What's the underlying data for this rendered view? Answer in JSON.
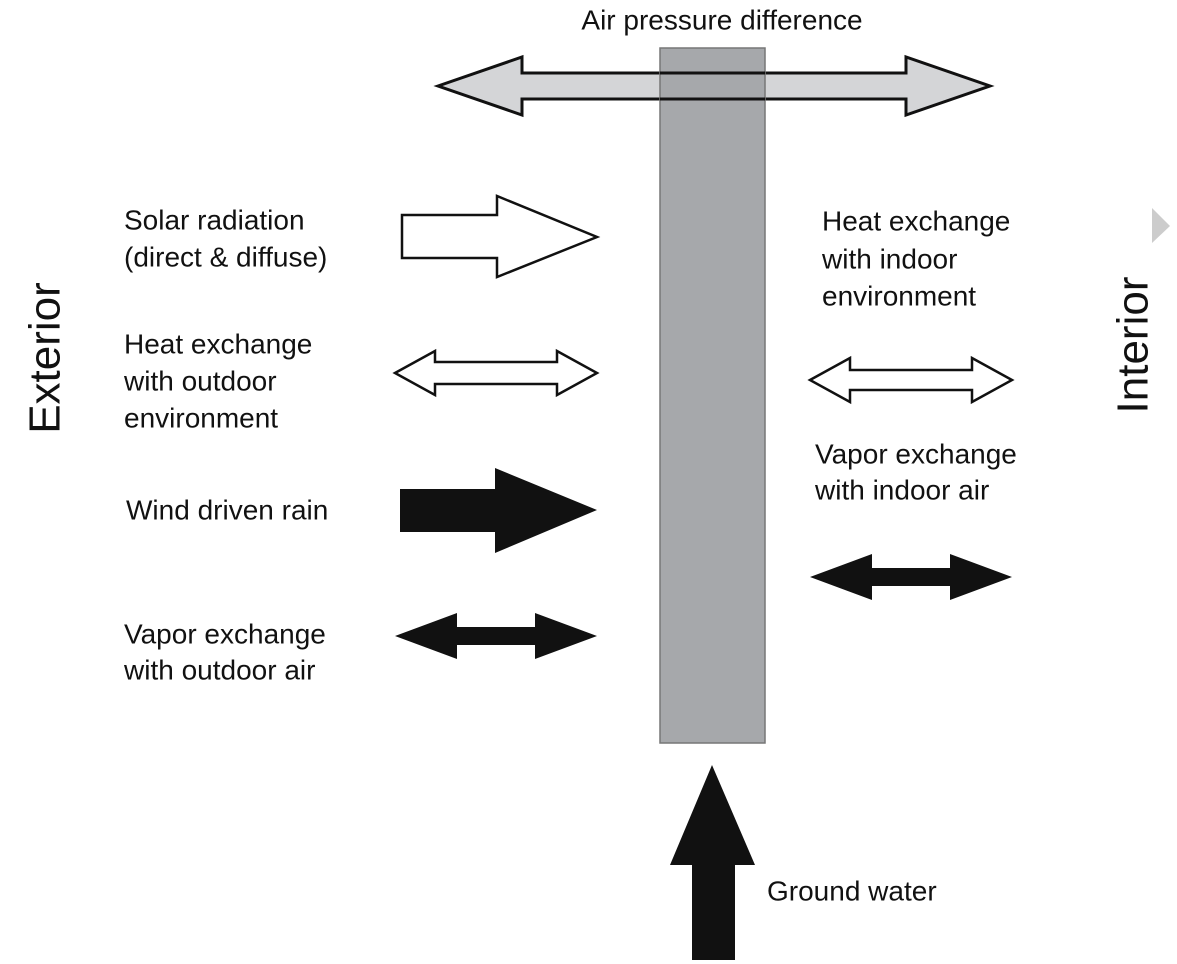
{
  "title": "Air pressure difference",
  "sides": {
    "exterior": "Exterior",
    "interior": "Interior"
  },
  "labels": {
    "solar": [
      "Solar radiation",
      "(direct & diffuse)"
    ],
    "heat_outdoor": [
      "Heat exchange",
      "with outdoor",
      "environment"
    ],
    "rain": [
      "Wind driven rain"
    ],
    "vapor_outdoor": [
      "Vapor exchange",
      "with outdoor air"
    ],
    "heat_indoor": [
      "Heat exchange",
      "with indoor",
      "environment"
    ],
    "vapor_indoor": [
      "Vapor exchange",
      "with indoor air"
    ],
    "ground": [
      "Ground water"
    ]
  }
}
